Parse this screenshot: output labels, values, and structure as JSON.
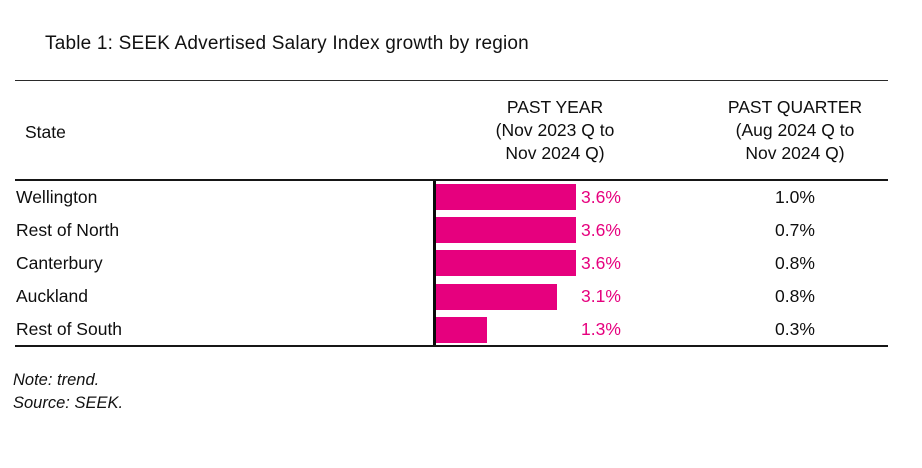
{
  "title": "Table 1: SEEK Advertised Salary Index growth by region",
  "table": {
    "columns": {
      "state": "State",
      "past_year_lines": [
        "PAST YEAR",
        "(Nov 2023 Q to",
        "Nov 2024 Q)"
      ],
      "past_quarter_lines": [
        "PAST QUARTER",
        "(Aug 2024 Q to",
        "Nov 2024 Q)"
      ]
    },
    "rows": [
      {
        "state": "Wellington",
        "past_year": "3.6%",
        "past_quarter": "1.0%"
      },
      {
        "state": "Rest of North",
        "past_year": "3.6%",
        "past_quarter": "0.7%"
      },
      {
        "state": "Canterbury",
        "past_year": "3.6%",
        "past_quarter": "0.8%"
      },
      {
        "state": "Auckland",
        "past_year": "3.1%",
        "past_quarter": "0.8%"
      },
      {
        "state": "Rest of South",
        "past_year": "1.3%",
        "past_quarter": "0.3%"
      }
    ]
  },
  "chart_data": {
    "type": "bar",
    "orientation": "horizontal",
    "title": "Table 1: SEEK Advertised Salary Index growth by region",
    "categories": [
      "Wellington",
      "Rest of North",
      "Canterbury",
      "Auckland",
      "Rest of South"
    ],
    "series": [
      {
        "name": "PAST YEAR (Nov 2023 Q to Nov 2024 Q)",
        "values": [
          3.6,
          3.6,
          3.6,
          3.1,
          1.3
        ],
        "unit": "%",
        "display": [
          "3.6%",
          "3.6%",
          "3.6%",
          "3.1%",
          "1.3%"
        ],
        "shown_as": "bars-with-labels"
      },
      {
        "name": "PAST QUARTER (Aug 2024 Q to Nov 2024 Q)",
        "values": [
          1.0,
          0.7,
          0.8,
          0.8,
          0.3
        ],
        "unit": "%",
        "display": [
          "1.0%",
          "0.7%",
          "0.8%",
          "0.8%",
          "0.3%"
        ],
        "shown_as": "labels-only"
      }
    ],
    "xlim": [
      0,
      3.9
    ],
    "grid": false,
    "legend": false,
    "bar_color": "#e6007e"
  },
  "notes": {
    "note": "Note: trend.",
    "source": "Source: SEEK."
  },
  "colors": {
    "accent": "#e6007e",
    "text": "#0e0e0e",
    "rule": "#161616"
  }
}
